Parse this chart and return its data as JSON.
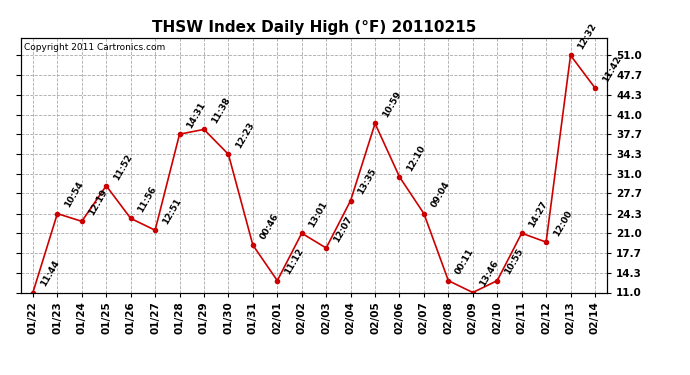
{
  "title": "THSW Index Daily High (°F) 20110215",
  "copyright": "Copyright 2011 Cartronics.com",
  "x_labels": [
    "01/22",
    "01/23",
    "01/24",
    "01/25",
    "01/26",
    "01/27",
    "01/28",
    "01/29",
    "01/30",
    "01/31",
    "02/01",
    "02/02",
    "02/03",
    "02/04",
    "02/05",
    "02/06",
    "02/07",
    "02/08",
    "02/09",
    "02/10",
    "02/11",
    "02/12",
    "02/13",
    "02/14"
  ],
  "y_values": [
    11.0,
    24.3,
    23.0,
    29.0,
    23.5,
    21.5,
    37.7,
    38.5,
    34.3,
    19.0,
    13.0,
    21.0,
    18.5,
    26.5,
    39.5,
    30.5,
    24.3,
    13.0,
    11.0,
    13.0,
    21.0,
    19.5,
    51.0,
    45.5
  ],
  "point_labels": [
    "11:44",
    "10:54",
    "12:19",
    "11:52",
    "11:56",
    "12:51",
    "14:31",
    "11:38",
    "12:23",
    "00:46",
    "11:12",
    "13:01",
    "12:07",
    "13:35",
    "10:59",
    "12:10",
    "09:04",
    "00:11",
    "13:46",
    "10:55",
    "14:27",
    "12:00",
    "12:32",
    "11:42"
  ],
  "line_color": "#cc0000",
  "marker_color": "#cc0000",
  "background_color": "#ffffff",
  "grid_color": "#aaaaaa",
  "ylim": [
    11.0,
    54.0
  ],
  "yticks": [
    11.0,
    14.3,
    17.7,
    21.0,
    24.3,
    27.7,
    31.0,
    34.3,
    37.7,
    41.0,
    44.3,
    47.7,
    51.0
  ],
  "title_fontsize": 11,
  "label_fontsize": 6.5,
  "copyright_fontsize": 6.5,
  "tick_fontsize": 7.5
}
